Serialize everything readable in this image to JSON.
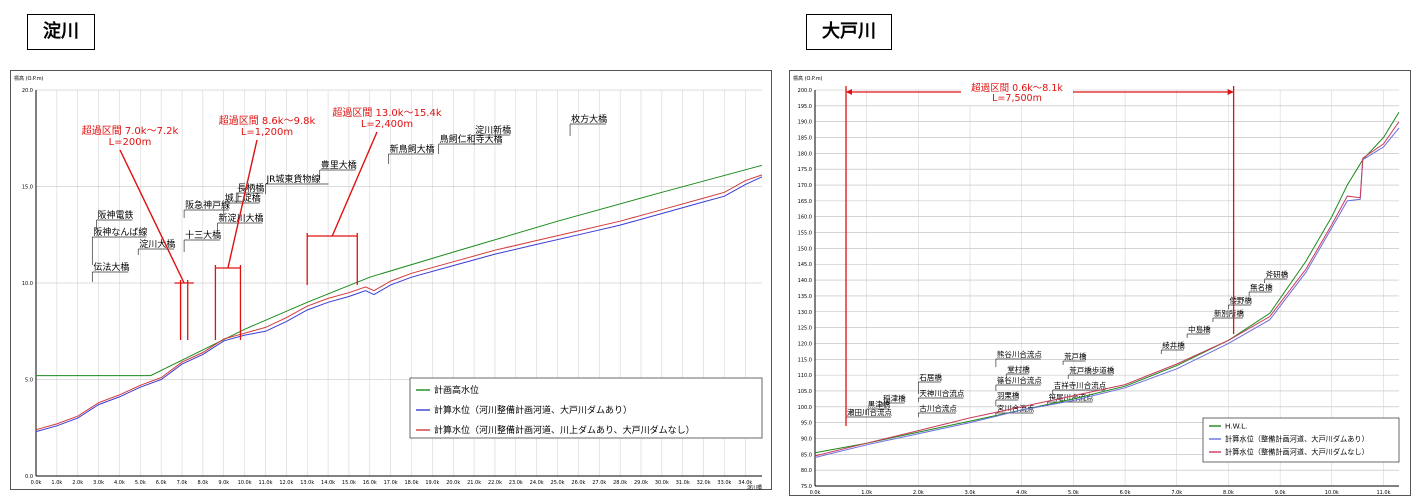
{
  "panels": {
    "left_title": "淀川",
    "right_title": "大戸川"
  },
  "chart_data": [
    {
      "type": "line",
      "title": "淀川",
      "ylabel": "標高 (O.P.m)",
      "xlabel": "",
      "x_end_label": "淀川橋",
      "xlim": [
        0,
        34.8
      ],
      "ylim": [
        0,
        20
      ],
      "yticks": [
        0,
        5,
        10,
        15,
        20
      ],
      "ytick_labels": [
        "0.0",
        "5.0",
        "10.0",
        "15.0",
        "20.0"
      ],
      "xtick_labels": [
        "0.0k",
        "1.0k",
        "2.0k",
        "3.0k",
        "4.0k",
        "5.0k",
        "6.0k",
        "7.0k",
        "8.0k",
        "9.0k",
        "10.0k",
        "11.0k",
        "12.0k",
        "13.0k",
        "14.0k",
        "15.0k",
        "16.0k",
        "17.0k",
        "18.0k",
        "19.0k",
        "20.0k",
        "21.0k",
        "22.0k",
        "23.0k",
        "24.0k",
        "25.0k",
        "26.0k",
        "27.0k",
        "28.0k",
        "29.0k",
        "30.0k",
        "31.0k",
        "32.0k",
        "33.0k",
        "34.0k"
      ],
      "grid": true,
      "legend_position": "bottom-right",
      "series": [
        {
          "name": "計画高水位",
          "color": "#1a8a1a",
          "x": [
            0,
            5.5,
            7.0,
            10.0,
            13.0,
            16.0,
            20.0,
            25.0,
            30.0,
            34.8
          ],
          "y": [
            5.2,
            5.2,
            6.0,
            7.6,
            9.0,
            10.3,
            11.6,
            13.2,
            14.7,
            16.1
          ]
        },
        {
          "name": "計算水位（河川整備計画河道、大戸川ダムあり）",
          "color": "#3b3bd6",
          "x": [
            0,
            1.0,
            2.0,
            3.0,
            4.0,
            5.0,
            6.0,
            7.0,
            8.0,
            9.0,
            10.0,
            11.0,
            12.0,
            13.0,
            14.0,
            15.0,
            15.8,
            16.2,
            17.0,
            18.0,
            20.0,
            22.0,
            24.0,
            26.0,
            28.0,
            30.0,
            32.0,
            33.0,
            34.0,
            34.8
          ],
          "y": [
            2.3,
            2.6,
            3.0,
            3.7,
            4.1,
            4.6,
            5.0,
            5.8,
            6.3,
            7.0,
            7.3,
            7.5,
            8.0,
            8.6,
            9.0,
            9.3,
            9.6,
            9.4,
            9.9,
            10.3,
            10.9,
            11.5,
            12.0,
            12.5,
            13.0,
            13.6,
            14.2,
            14.5,
            15.1,
            15.5
          ]
        },
        {
          "name": "計算水位（河川整備計画河道、川上ダムあり、大戸川ダムなし）",
          "color": "#d33a3a",
          "x": [
            0,
            1.0,
            2.0,
            3.0,
            4.0,
            5.0,
            6.0,
            7.0,
            8.0,
            9.0,
            10.0,
            11.0,
            12.0,
            13.0,
            14.0,
            15.0,
            15.8,
            16.2,
            17.0,
            18.0,
            20.0,
            22.0,
            24.0,
            26.0,
            28.0,
            30.0,
            32.0,
            33.0,
            34.0,
            34.8
          ],
          "y": [
            2.4,
            2.7,
            3.1,
            3.8,
            4.2,
            4.7,
            5.1,
            5.9,
            6.4,
            7.1,
            7.4,
            7.7,
            8.2,
            8.8,
            9.2,
            9.5,
            9.8,
            9.6,
            10.1,
            10.5,
            11.1,
            11.7,
            12.2,
            12.7,
            13.2,
            13.8,
            14.4,
            14.7,
            15.3,
            15.6
          ]
        }
      ],
      "exceed_sections": [
        {
          "label1": "超過区間 7.0k～7.2k",
          "label2": "L=200m",
          "from": 7.0,
          "to": 7.2
        },
        {
          "label1": "超過区間 8.6k～9.8k",
          "label2": "L=1,200m",
          "from": 8.6,
          "to": 9.8
        },
        {
          "label1": "超過区間 13.0k～15.4k",
          "label2": "L=2,400m",
          "from": 13.0,
          "to": 15.4
        }
      ],
      "landmarks": [
        {
          "label": "伝法大橋",
          "x": 2.7
        },
        {
          "label": "阪神なんば線",
          "x": 2.7
        },
        {
          "label": "阪神電鉄",
          "x": 2.9
        },
        {
          "label": "淀川大橋",
          "x": 4.9
        },
        {
          "label": "十三大橋",
          "x": 7.1
        },
        {
          "label": "阪急神戸線",
          "x": 7.1
        },
        {
          "label": "新淀川大橋",
          "x": 8.7
        },
        {
          "label": "城上淀橋",
          "x": 9.0
        },
        {
          "label": "長柄橋",
          "x": 9.6
        },
        {
          "label": "JR城東貨物線",
          "x": 11.0
        },
        {
          "label": "豊里大橋",
          "x": 13.6
        },
        {
          "label": "新鳥飼大橋",
          "x": 16.9
        },
        {
          "label": "鳥飼仁和寺大橋",
          "x": 19.3
        },
        {
          "label": "淀川新橋",
          "x": 21.0
        },
        {
          "label": "枚方大橋",
          "x": 25.6
        }
      ]
    },
    {
      "type": "line",
      "title": "大戸川",
      "ylabel": "標高 (O.P.m)",
      "xlabel": "",
      "x_end_label": "",
      "xlim": [
        0,
        11.3
      ],
      "ylim": [
        75,
        200
      ],
      "yticks": [
        75,
        80,
        85,
        90,
        95,
        100,
        105,
        110,
        115,
        120,
        125,
        130,
        135,
        140,
        145,
        150,
        155,
        160,
        165,
        170,
        175,
        180,
        185,
        190,
        195,
        200
      ],
      "ytick_labels": [
        "75.0",
        "80.0",
        "85.0",
        "90.0",
        "95.0",
        "100.0",
        "105.0",
        "110.0",
        "115.0",
        "120.0",
        "125.0",
        "130.0",
        "135.0",
        "140.0",
        "145.0",
        "150.0",
        "155.0",
        "160.0",
        "165.0",
        "170.0",
        "175.0",
        "180.0",
        "185.0",
        "190.0",
        "195.0",
        "200.0"
      ],
      "xtick_labels": [
        "0.0k",
        "1.0k",
        "2.0k",
        "3.0k",
        "4.0k",
        "5.0k",
        "6.0k",
        "7.0k",
        "8.0k",
        "9.0k",
        "10.0k",
        "11.0k"
      ],
      "grid": true,
      "legend_position": "bottom-right",
      "series": [
        {
          "name": "H.W.L.",
          "color": "#1a8a1a",
          "x": [
            0,
            1.0,
            2.0,
            3.0,
            4.0,
            5.0,
            6.0,
            7.0,
            8.0,
            8.8,
            9.5,
            10.0,
            10.3,
            10.6,
            11.0,
            11.3
          ],
          "y": [
            85.5,
            88.5,
            92.0,
            95.5,
            99.0,
            102.5,
            106.5,
            113.0,
            121.0,
            129.5,
            146.0,
            160.0,
            170.0,
            178.0,
            185.0,
            193.0
          ]
        },
        {
          "name": "計算水位（整備計画河道、大戸川ダムあり）",
          "color": "#6d6de0",
          "x": [
            0,
            1.0,
            2.0,
            3.0,
            4.0,
            5.0,
            6.0,
            7.0,
            8.0,
            8.8,
            9.5,
            10.0,
            10.3,
            10.55,
            10.6,
            11.0,
            11.3
          ],
          "y": [
            84.0,
            88.0,
            91.5,
            95.0,
            99.0,
            102.0,
            106.0,
            112.0,
            120.0,
            127.5,
            142.5,
            156.5,
            165.0,
            165.5,
            178.0,
            182.0,
            188.0
          ]
        },
        {
          "name": "計算水位（整備計画河道、大戸川ダムなし）",
          "color": "#cc3a5a",
          "x": [
            0,
            1.0,
            2.0,
            3.0,
            4.0,
            5.0,
            6.0,
            7.0,
            8.0,
            8.8,
            9.5,
            10.0,
            10.3,
            10.55,
            10.6,
            11.0,
            11.3
          ],
          "y": [
            84.5,
            88.5,
            92.5,
            96.5,
            100.0,
            103.5,
            107.0,
            113.5,
            121.0,
            128.5,
            143.5,
            157.5,
            166.5,
            166.0,
            178.5,
            183.0,
            190.0
          ]
        }
      ],
      "exceed_sections": [
        {
          "label1": "超過区間 0.6k～8.1k",
          "label2": "L=7,500m",
          "from": 0.6,
          "to": 8.1
        }
      ],
      "landmarks": [
        {
          "label": "瀬田川合流点",
          "x": 0.6
        },
        {
          "label": "黒津橋",
          "x": 1.0
        },
        {
          "label": "稲津橋",
          "x": 1.3
        },
        {
          "label": "石居橋",
          "x": 2.0
        },
        {
          "label": "天神川合流点",
          "x": 2.0
        },
        {
          "label": "古川合流点",
          "x": 2.0
        },
        {
          "label": "熊谷川合流点",
          "x": 3.5
        },
        {
          "label": "堂村橋",
          "x": 3.7
        },
        {
          "label": "篠谷川合流点",
          "x": 3.5
        },
        {
          "label": "羽栗橋",
          "x": 3.5
        },
        {
          "label": "宮川合流点",
          "x": 3.5
        },
        {
          "label": "荒戸橋",
          "x": 4.8
        },
        {
          "label": "荒戸橋歩道橋",
          "x": 4.9
        },
        {
          "label": "吉祥寺川合流点",
          "x": 4.6
        },
        {
          "label": "笹尾川合流点",
          "x": 4.5
        },
        {
          "label": "綾井橋",
          "x": 6.7
        },
        {
          "label": "中島橋",
          "x": 7.2
        },
        {
          "label": "新別所橋",
          "x": 7.7
        },
        {
          "label": "倭野橋",
          "x": 8.0
        },
        {
          "label": "無名橋",
          "x": 8.4
        },
        {
          "label": "斧研橋",
          "x": 8.7
        }
      ]
    }
  ]
}
